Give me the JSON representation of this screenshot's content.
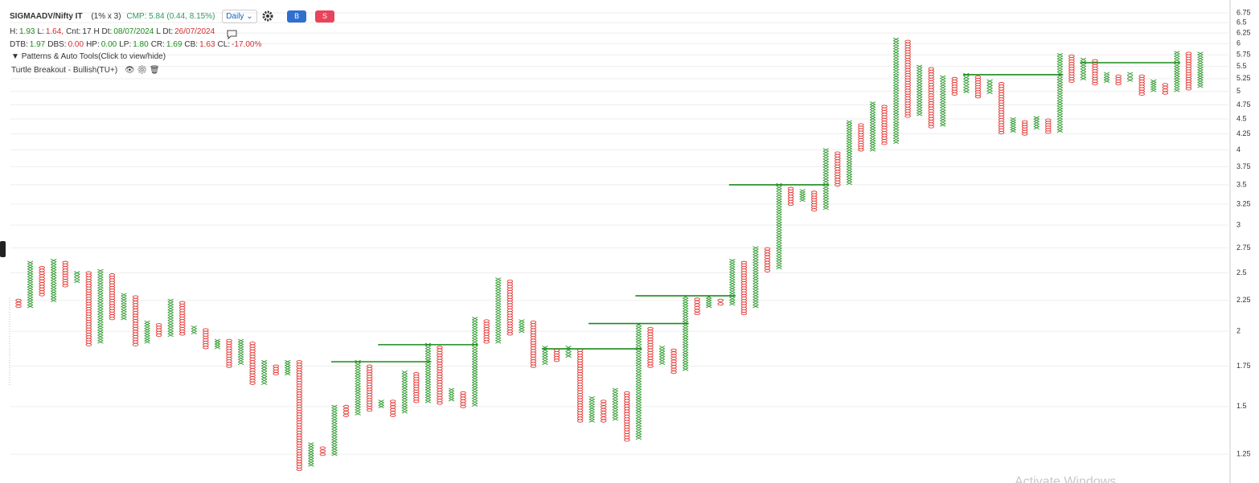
{
  "header": {
    "symbol": "SIGMAADV/Nifty IT",
    "box": "(1% x 3)",
    "cmp": "CMP: 5.84 (0.44, 8.15%)",
    "interval": "Daily",
    "buy": "B",
    "sell": "S",
    "stats": [
      [
        {
          "label": "H:",
          "value": "1.93",
          "color": "#1e8c1e"
        },
        {
          "label": "L:",
          "value": "1.64,",
          "color": "#d32f2f"
        },
        {
          "label": "Cnt:",
          "value": "17",
          "color": "#333"
        },
        {
          "label": "H Dt:",
          "value": "08/07/2024",
          "color": "#1e8c1e"
        },
        {
          "label": "L Dt:",
          "value": "26/07/2024",
          "color": "#d32f2f"
        }
      ],
      [
        {
          "label": "DTB:",
          "value": "1.97",
          "color": "#1e8c1e"
        },
        {
          "label": "DBS:",
          "value": "0.00",
          "color": "#d32f2f"
        },
        {
          "label": "HP:",
          "value": "0.00",
          "color": "#1e8c1e"
        },
        {
          "label": "LP:",
          "value": "1.80",
          "color": "#1e8c1e"
        },
        {
          "label": "CR:",
          "value": "1.69",
          "color": "#1e8c1e"
        },
        {
          "label": "CB:",
          "value": "1.63",
          "color": "#d32f2f"
        },
        {
          "label": "CL:",
          "value": "-17.00%",
          "color": "#d32f2f"
        }
      ]
    ],
    "patterns": "Patterns & Auto Tools(Click to view/hide)",
    "tool": "Turtle Breakout - Bullish(TU+)",
    "watermark": "Activate Windows"
  },
  "chart_data": {
    "type": "pnf",
    "log_scale": true,
    "grid": true,
    "x_color": "#2e9a2e",
    "o_color": "#e53935",
    "level_color": "#1a8a1a",
    "box_pct": 1,
    "ylim": [
      1.12,
      7.09
    ],
    "yticks": [
      6.75,
      6.5,
      6.25,
      6,
      5.75,
      5.5,
      5.25,
      5,
      4.75,
      4.5,
      4.25,
      4,
      3.75,
      3.5,
      3.25,
      3,
      2.75,
      2.5,
      2.25,
      2,
      1.75,
      1.5,
      1.25
    ],
    "columns": [
      {
        "kind": "O",
        "high": 2.25,
        "low": 2.2
      },
      {
        "kind": "X",
        "high": 2.6,
        "low": 2.2
      },
      {
        "kind": "O",
        "high": 2.55,
        "low": 2.3
      },
      {
        "kind": "X",
        "high": 2.62,
        "low": 2.25
      },
      {
        "kind": "O",
        "high": 2.6,
        "low": 2.38
      },
      {
        "kind": "X",
        "high": 2.5,
        "low": 2.42
      },
      {
        "kind": "O",
        "high": 2.5,
        "low": 1.9
      },
      {
        "kind": "X",
        "high": 2.52,
        "low": 1.92
      },
      {
        "kind": "O",
        "high": 2.48,
        "low": 2.1
      },
      {
        "kind": "X",
        "high": 2.3,
        "low": 2.1
      },
      {
        "kind": "O",
        "high": 2.28,
        "low": 1.9
      },
      {
        "kind": "X",
        "high": 2.07,
        "low": 1.92
      },
      {
        "kind": "O",
        "high": 2.05,
        "low": 1.97
      },
      {
        "kind": "X",
        "high": 2.25,
        "low": 1.97
      },
      {
        "kind": "O",
        "high": 2.23,
        "low": 1.98
      },
      {
        "kind": "X",
        "high": 2.03,
        "low": 1.99
      },
      {
        "kind": "O",
        "high": 2.01,
        "low": 1.88
      },
      {
        "kind": "X",
        "high": 1.93,
        "low": 1.88
      },
      {
        "kind": "O",
        "high": 1.93,
        "low": 1.75
      },
      {
        "kind": "X",
        "high": 1.93,
        "low": 1.77
      },
      {
        "kind": "O",
        "high": 1.91,
        "low": 1.64
      },
      {
        "kind": "X",
        "high": 1.78,
        "low": 1.64
      },
      {
        "kind": "O",
        "high": 1.75,
        "low": 1.7
      },
      {
        "kind": "X",
        "high": 1.78,
        "low": 1.7
      },
      {
        "kind": "O",
        "high": 1.78,
        "low": 1.18
      },
      {
        "kind": "X",
        "high": 1.3,
        "low": 1.2
      },
      {
        "kind": "O",
        "high": 1.28,
        "low": 1.25
      },
      {
        "kind": "X",
        "high": 1.5,
        "low": 1.25
      },
      {
        "kind": "O",
        "high": 1.5,
        "low": 1.45
      },
      {
        "kind": "X",
        "high": 1.78,
        "low": 1.46
      },
      {
        "kind": "O",
        "high": 1.75,
        "low": 1.48
      },
      {
        "kind": "X",
        "high": 1.53,
        "low": 1.5
      },
      {
        "kind": "O",
        "high": 1.53,
        "low": 1.45
      },
      {
        "kind": "X",
        "high": 1.71,
        "low": 1.47
      },
      {
        "kind": "O",
        "high": 1.7,
        "low": 1.53
      },
      {
        "kind": "X",
        "high": 1.9,
        "low": 1.53
      },
      {
        "kind": "O",
        "high": 1.88,
        "low": 1.52
      },
      {
        "kind": "X",
        "high": 1.6,
        "low": 1.54
      },
      {
        "kind": "O",
        "high": 1.58,
        "low": 1.5
      },
      {
        "kind": "X",
        "high": 2.1,
        "low": 1.51
      },
      {
        "kind": "O",
        "high": 2.08,
        "low": 1.92
      },
      {
        "kind": "X",
        "high": 2.44,
        "low": 1.92
      },
      {
        "kind": "O",
        "high": 2.42,
        "low": 1.98
      },
      {
        "kind": "X",
        "high": 2.08,
        "low": 2.0
      },
      {
        "kind": "O",
        "high": 2.07,
        "low": 1.75
      },
      {
        "kind": "X",
        "high": 1.88,
        "low": 1.77
      },
      {
        "kind": "O",
        "high": 1.86,
        "low": 1.79
      },
      {
        "kind": "X",
        "high": 1.88,
        "low": 1.82
      },
      {
        "kind": "O",
        "high": 1.86,
        "low": 1.42
      },
      {
        "kind": "X",
        "high": 1.55,
        "low": 1.42
      },
      {
        "kind": "O",
        "high": 1.53,
        "low": 1.42
      },
      {
        "kind": "X",
        "high": 1.6,
        "low": 1.43
      },
      {
        "kind": "O",
        "high": 1.58,
        "low": 1.32
      },
      {
        "kind": "X",
        "high": 2.05,
        "low": 1.33
      },
      {
        "kind": "O",
        "high": 2.02,
        "low": 1.75
      },
      {
        "kind": "X",
        "high": 1.88,
        "low": 1.77
      },
      {
        "kind": "O",
        "high": 1.86,
        "low": 1.71
      },
      {
        "kind": "X",
        "high": 2.28,
        "low": 1.73
      },
      {
        "kind": "O",
        "high": 2.26,
        "low": 2.14
      },
      {
        "kind": "X",
        "high": 2.28,
        "low": 2.2
      },
      {
        "kind": "O",
        "high": 2.25,
        "low": 2.22
      },
      {
        "kind": "X",
        "high": 2.62,
        "low": 2.22
      },
      {
        "kind": "O",
        "high": 2.6,
        "low": 2.14
      },
      {
        "kind": "X",
        "high": 2.75,
        "low": 2.2
      },
      {
        "kind": "O",
        "high": 2.74,
        "low": 2.52
      },
      {
        "kind": "X",
        "high": 3.5,
        "low": 2.55
      },
      {
        "kind": "O",
        "high": 3.45,
        "low": 3.25
      },
      {
        "kind": "X",
        "high": 3.42,
        "low": 3.3
      },
      {
        "kind": "O",
        "high": 3.4,
        "low": 3.18
      },
      {
        "kind": "X",
        "high": 4.0,
        "low": 3.2
      },
      {
        "kind": "O",
        "high": 3.95,
        "low": 3.5
      },
      {
        "kind": "X",
        "high": 4.45,
        "low": 3.52
      },
      {
        "kind": "O",
        "high": 4.4,
        "low": 4.0
      },
      {
        "kind": "X",
        "high": 4.78,
        "low": 4.0
      },
      {
        "kind": "O",
        "high": 4.72,
        "low": 4.1
      },
      {
        "kind": "X",
        "high": 6.1,
        "low": 4.12
      },
      {
        "kind": "O",
        "high": 6.05,
        "low": 4.55
      },
      {
        "kind": "X",
        "high": 5.5,
        "low": 4.58
      },
      {
        "kind": "O",
        "high": 5.45,
        "low": 4.37
      },
      {
        "kind": "X",
        "high": 5.28,
        "low": 4.4
      },
      {
        "kind": "O",
        "high": 5.25,
        "low": 4.95
      },
      {
        "kind": "X",
        "high": 5.33,
        "low": 5.0
      },
      {
        "kind": "O",
        "high": 5.28,
        "low": 4.9
      },
      {
        "kind": "X",
        "high": 5.2,
        "low": 4.98
      },
      {
        "kind": "O",
        "high": 5.15,
        "low": 4.27
      },
      {
        "kind": "X",
        "high": 4.5,
        "low": 4.3
      },
      {
        "kind": "O",
        "high": 4.45,
        "low": 4.25
      },
      {
        "kind": "X",
        "high": 4.52,
        "low": 4.35
      },
      {
        "kind": "O",
        "high": 4.48,
        "low": 4.28
      },
      {
        "kind": "X",
        "high": 5.75,
        "low": 4.3
      },
      {
        "kind": "O",
        "high": 5.72,
        "low": 5.2
      },
      {
        "kind": "X",
        "high": 5.65,
        "low": 5.25
      },
      {
        "kind": "O",
        "high": 5.62,
        "low": 5.15
      },
      {
        "kind": "X",
        "high": 5.35,
        "low": 5.2
      },
      {
        "kind": "O",
        "high": 5.3,
        "low": 5.15
      },
      {
        "kind": "X",
        "high": 5.35,
        "low": 5.22
      },
      {
        "kind": "O",
        "high": 5.3,
        "low": 4.95
      },
      {
        "kind": "X",
        "high": 5.2,
        "low": 5.02
      },
      {
        "kind": "O",
        "high": 5.13,
        "low": 4.97
      },
      {
        "kind": "X",
        "high": 5.8,
        "low": 5.02
      },
      {
        "kind": "O",
        "high": 5.78,
        "low": 5.05
      },
      {
        "kind": "X",
        "high": 5.78,
        "low": 5.1
      }
    ],
    "levels": [
      {
        "value": 1.78,
        "start": 27,
        "end": 35
      },
      {
        "value": 1.9,
        "start": 31,
        "end": 39
      },
      {
        "value": 1.87,
        "start": 45,
        "end": 53
      },
      {
        "value": 2.06,
        "start": 49,
        "end": 57
      },
      {
        "value": 2.29,
        "start": 53,
        "end": 61
      },
      {
        "value": 3.5,
        "start": 61,
        "end": 69
      },
      {
        "value": 5.33,
        "start": 81,
        "end": 89
      },
      {
        "value": 5.58,
        "start": 91,
        "end": 99
      }
    ]
  }
}
